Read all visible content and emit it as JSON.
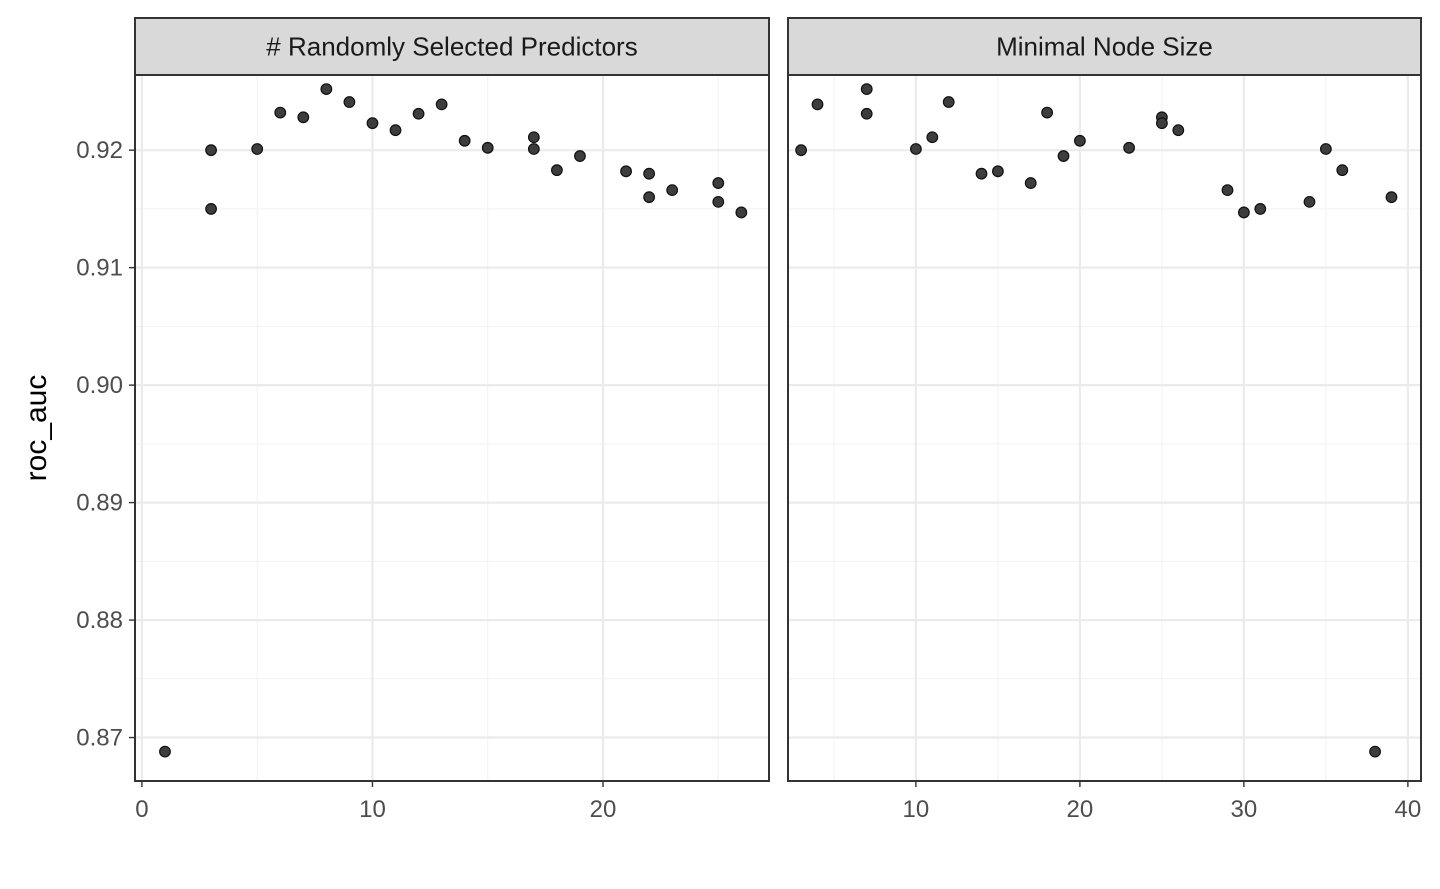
{
  "chart_data": {
    "type": "scatter",
    "ylabel": "roc_auc",
    "xlabel": "",
    "y_ticks": [
      "0.87",
      "0.88",
      "0.89",
      "0.90",
      "0.91",
      "0.92"
    ],
    "y_tick_values": [
      0.87,
      0.88,
      0.89,
      0.9,
      0.91,
      0.92
    ],
    "ylim": [
      0.8663,
      0.9264
    ],
    "grid": true,
    "point_color": "#3d3d3d",
    "panel_border_color": "#333333",
    "strip_fill": "#d9d9d9",
    "panels": [
      {
        "strip": "# Randomly Selected Predictors",
        "xlim": [
          -0.3,
          27.2
        ],
        "x_ticks": [
          "0",
          "10",
          "20"
        ],
        "x_tick_values": [
          0,
          10,
          20
        ],
        "points": [
          {
            "x": 1,
            "y": 0.8688
          },
          {
            "x": 3,
            "y": 0.92
          },
          {
            "x": 3,
            "y": 0.915
          },
          {
            "x": 5,
            "y": 0.9201
          },
          {
            "x": 6,
            "y": 0.9232
          },
          {
            "x": 7,
            "y": 0.9228
          },
          {
            "x": 8,
            "y": 0.9252
          },
          {
            "x": 9,
            "y": 0.9241
          },
          {
            "x": 10,
            "y": 0.9223
          },
          {
            "x": 11,
            "y": 0.9217
          },
          {
            "x": 12,
            "y": 0.9231
          },
          {
            "x": 13,
            "y": 0.9239
          },
          {
            "x": 14,
            "y": 0.9208
          },
          {
            "x": 15,
            "y": 0.9202
          },
          {
            "x": 17,
            "y": 0.9211
          },
          {
            "x": 17,
            "y": 0.9201
          },
          {
            "x": 18,
            "y": 0.9183
          },
          {
            "x": 19,
            "y": 0.9195
          },
          {
            "x": 21,
            "y": 0.9182
          },
          {
            "x": 22,
            "y": 0.918
          },
          {
            "x": 22,
            "y": 0.916
          },
          {
            "x": 23,
            "y": 0.9166
          },
          {
            "x": 25,
            "y": 0.9172
          },
          {
            "x": 25,
            "y": 0.9156
          },
          {
            "x": 26,
            "y": 0.9147
          }
        ]
      },
      {
        "strip": "Minimal Node Size",
        "xlim": [
          2.2,
          40.8
        ],
        "x_ticks": [
          "10",
          "20",
          "30",
          "40"
        ],
        "x_tick_values": [
          10,
          20,
          30,
          40
        ],
        "points": [
          {
            "x": 3,
            "y": 0.92
          },
          {
            "x": 4,
            "y": 0.9239
          },
          {
            "x": 7,
            "y": 0.9252
          },
          {
            "x": 7,
            "y": 0.9231
          },
          {
            "x": 10,
            "y": 0.9201
          },
          {
            "x": 11,
            "y": 0.9211
          },
          {
            "x": 12,
            "y": 0.9241
          },
          {
            "x": 14,
            "y": 0.918
          },
          {
            "x": 15,
            "y": 0.9182
          },
          {
            "x": 17,
            "y": 0.9172
          },
          {
            "x": 18,
            "y": 0.9232
          },
          {
            "x": 19,
            "y": 0.9195
          },
          {
            "x": 20,
            "y": 0.9208
          },
          {
            "x": 23,
            "y": 0.9202
          },
          {
            "x": 25,
            "y": 0.9228
          },
          {
            "x": 25,
            "y": 0.9223
          },
          {
            "x": 26,
            "y": 0.9217
          },
          {
            "x": 29,
            "y": 0.9166
          },
          {
            "x": 30,
            "y": 0.9147
          },
          {
            "x": 31,
            "y": 0.915
          },
          {
            "x": 34,
            "y": 0.9156
          },
          {
            "x": 35,
            "y": 0.9201
          },
          {
            "x": 36,
            "y": 0.9183
          },
          {
            "x": 38,
            "y": 0.8688
          },
          {
            "x": 39,
            "y": 0.916
          }
        ]
      }
    ]
  }
}
